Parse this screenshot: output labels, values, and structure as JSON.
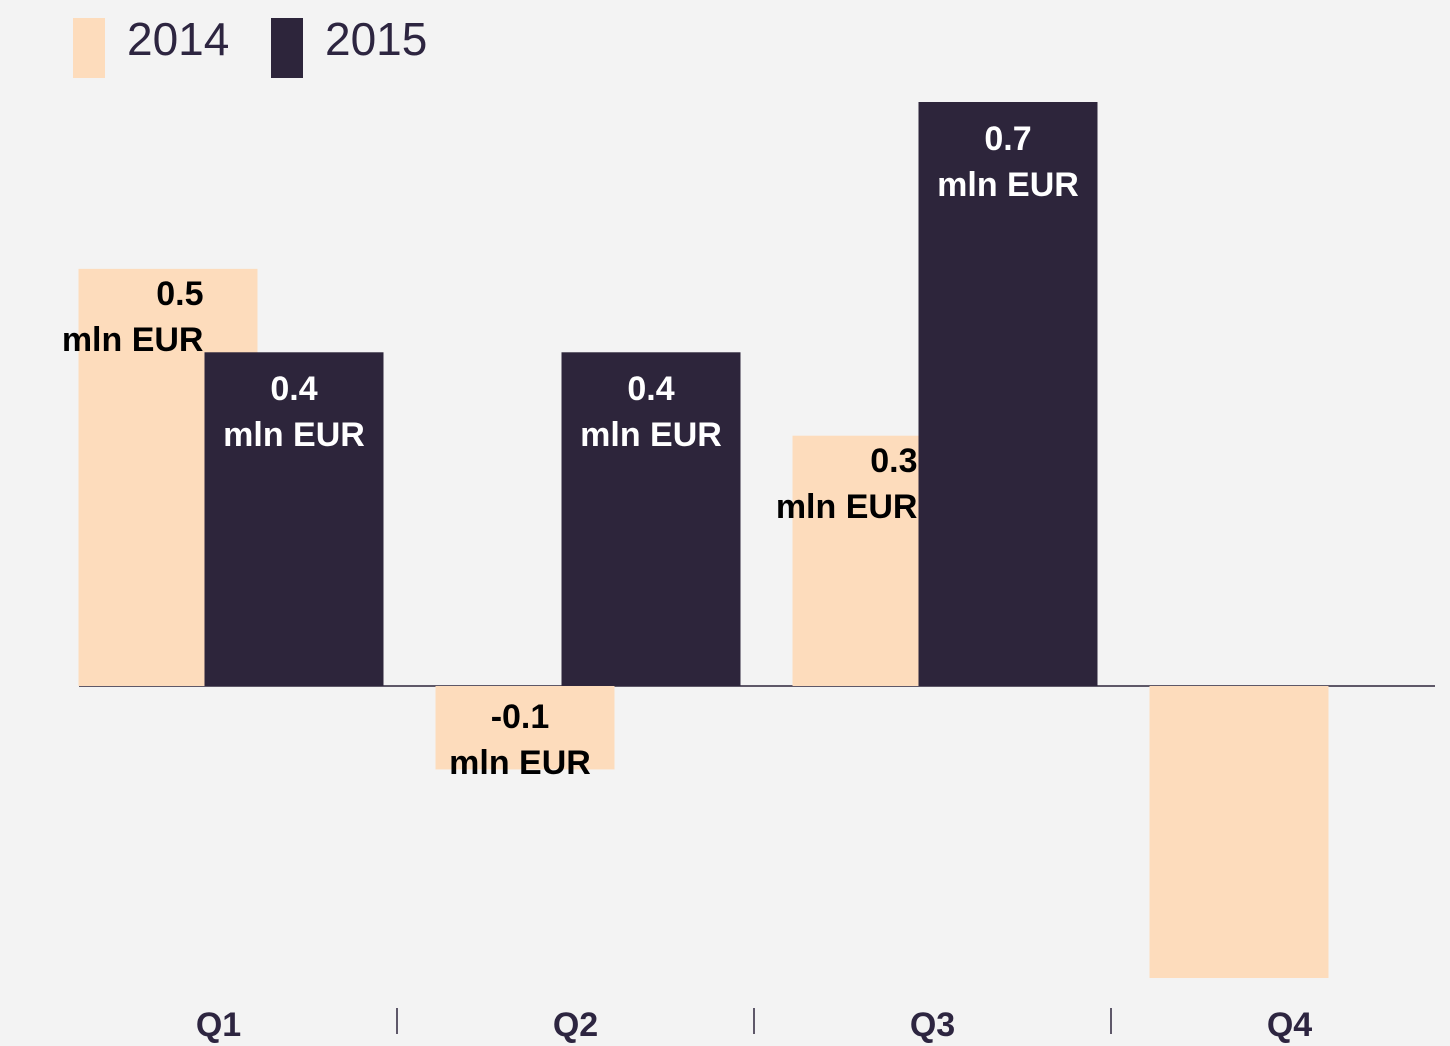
{
  "chart_data": {
    "type": "bar",
    "categories": [
      "Q1",
      "Q2",
      "Q3",
      "Q4"
    ],
    "series": [
      {
        "name": "2014",
        "color": "#fddcbc",
        "values": [
          0.5,
          -0.1,
          0.3,
          -0.35
        ],
        "value_labels": [
          "0.5\nmln EUR",
          "-0.1\nmln EUR",
          "0.3\nmln EUR",
          null
        ]
      },
      {
        "name": "2015",
        "color": "#2d253b",
        "values": [
          0.4,
          0.4,
          0.7,
          null
        ],
        "value_labels": [
          "0.4\nmln EUR",
          "0.4\nmln EUR",
          "0.7\nmln EUR",
          null
        ]
      }
    ],
    "legend": "top-left"
  }
}
